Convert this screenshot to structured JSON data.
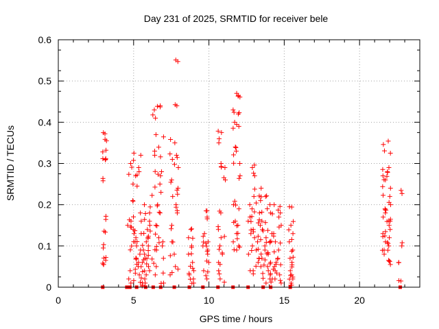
{
  "chart_data": {
    "type": "scatter",
    "title": "Day 231 of 2025, SRMTID for receiver bele",
    "xlabel": "GPS time / hours",
    "ylabel": "SRMTID / TECUs",
    "xlim": [
      0,
      24
    ],
    "ylim": [
      0,
      0.6
    ],
    "xticks": [
      0,
      5,
      10,
      15,
      20
    ],
    "xtick_labels": [
      "0",
      "5",
      "10",
      "15",
      "20"
    ],
    "yticks": [
      0,
      0.1,
      0.2,
      0.3,
      0.4,
      0.5,
      0.6
    ],
    "ytick_labels": [
      "0",
      "0.1",
      "0.2",
      "0.3",
      "0.4",
      "0.5",
      "0.6"
    ],
    "grid": true,
    "color": "#ff0000",
    "series": [
      {
        "name": "SRMTID",
        "marker": "plus",
        "clusters": [
          {
            "x_range": [
              2.9,
              3.2
            ],
            "y_values": [
              0.372,
              0.355,
              0.328,
              0.312,
              0.31,
              0.258,
              0.172,
              0.136,
              0.095,
              0.072,
              0.065,
              0.055
            ]
          },
          {
            "x_range": [
              4.6,
              5.5
            ],
            "y_values": [
              0.32,
              0.3,
              0.29,
              0.28,
              0.27,
              0.25,
              0.21,
              0.18,
              0.16,
              0.15,
              0.14,
              0.13,
              0.12,
              0.11,
              0.1,
              0.09,
              0.08,
              0.07,
              0.06,
              0.05,
              0.04,
              0.03,
              0.02,
              0.01
            ]
          },
          {
            "x_range": [
              5.5,
              6.2
            ],
            "y_values": [
              0.2,
              0.18,
              0.16,
              0.15,
              0.14,
              0.13,
              0.12,
              0.11,
              0.1,
              0.09,
              0.08,
              0.07,
              0.06,
              0.05,
              0.04,
              0.03,
              0.02,
              0.01,
              0.005
            ]
          },
          {
            "x_range": [
              6.2,
              7.0
            ],
            "y_values": [
              0.44,
              0.43,
              0.41,
              0.37,
              0.33,
              0.32,
              0.28,
              0.27,
              0.25,
              0.23,
              0.2,
              0.18,
              0.15,
              0.12,
              0.11,
              0.1,
              0.09,
              0.07,
              0.05,
              0.03,
              0.01
            ]
          },
          {
            "x_range": [
              7.4,
              8.0
            ],
            "y_values": [
              0.551,
              0.44,
              0.35,
              0.32,
              0.31,
              0.29,
              0.26,
              0.24,
              0.22,
              0.2,
              0.18,
              0.15,
              0.11,
              0.08,
              0.05,
              0.03
            ]
          },
          {
            "x_range": [
              8.6,
              9.0
            ],
            "y_values": [
              0.14,
              0.12,
              0.1,
              0.08,
              0.06,
              0.04,
              0.03,
              0.02,
              0.01
            ]
          },
          {
            "x_range": [
              9.6,
              10.0
            ],
            "y_values": [
              0.185,
              0.17,
              0.13,
              0.11,
              0.1,
              0.09,
              0.08,
              0.06,
              0.04,
              0.02
            ]
          },
          {
            "x_range": [
              10.6,
              11.1
            ],
            "y_values": [
              0.375,
              0.35,
              0.3,
              0.29,
              0.26,
              0.18,
              0.14,
              0.12,
              0.1,
              0.08,
              0.06,
              0.04,
              0.02
            ]
          },
          {
            "x_range": [
              11.6,
              12.1
            ],
            "y_values": [
              0.47,
              0.465,
              0.43,
              0.42,
              0.4,
              0.39,
              0.34,
              0.33,
              0.3,
              0.27,
              0.2,
              0.19,
              0.16,
              0.15,
              0.13,
              0.11,
              0.1,
              0.09
            ]
          },
          {
            "x_range": [
              12.6,
              13.5
            ],
            "y_values": [
              0.29,
              0.27,
              0.24,
              0.22,
              0.21,
              0.2,
              0.19,
              0.18,
              0.17,
              0.16,
              0.15,
              0.14,
              0.13,
              0.12,
              0.11,
              0.1,
              0.09,
              0.08,
              0.07,
              0.06,
              0.05,
              0.04
            ]
          },
          {
            "x_range": [
              13.5,
              14.2
            ],
            "y_values": [
              0.22,
              0.2,
              0.18,
              0.16,
              0.14,
              0.13,
              0.12,
              0.11,
              0.1,
              0.09,
              0.08,
              0.07,
              0.06,
              0.05,
              0.04,
              0.03,
              0.02,
              0.01
            ]
          },
          {
            "x_range": [
              14.2,
              14.8
            ],
            "y_values": [
              0.2,
              0.18,
              0.17,
              0.15,
              0.13,
              0.11,
              0.09,
              0.07,
              0.06,
              0.05,
              0.04,
              0.03,
              0.02,
              0.01
            ]
          },
          {
            "x_range": [
              15.3,
              15.6
            ],
            "y_values": [
              0.195,
              0.15,
              0.13,
              0.11,
              0.09,
              0.07,
              0.06,
              0.04,
              0.03,
              0.02,
              0.01,
              0.005
            ]
          },
          {
            "x_range": [
              21.5,
              22.1
            ],
            "y_values": [
              0.346,
              0.325,
              0.29,
              0.28,
              0.27,
              0.26,
              0.24,
              0.22,
              0.2,
              0.19,
              0.18,
              0.17,
              0.16,
              0.15,
              0.14,
              0.13,
              0.12,
              0.11,
              0.1,
              0.09,
              0.08,
              0.065,
              0.055
            ]
          },
          {
            "x_range": [
              22.6,
              22.9
            ],
            "y_values": [
              0.227,
              0.1,
              0.06,
              0.015
            ]
          }
        ],
        "zero_markers_x": [
          2.95,
          4.55,
          4.75,
          5.2,
          5.8,
          6.3,
          6.8,
          7.7,
          8.7,
          9.6,
          10.6,
          11.6,
          12.6,
          13.6,
          14.1,
          15.4,
          22.7
        ]
      }
    ]
  }
}
